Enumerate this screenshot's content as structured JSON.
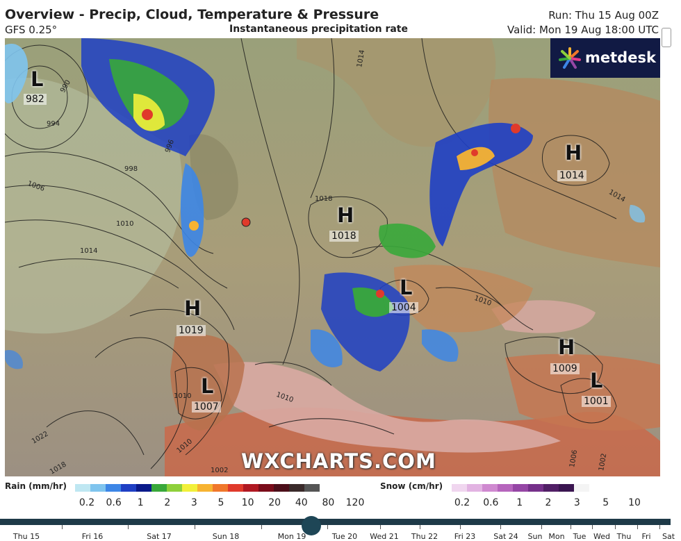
{
  "header": {
    "title": "Overview - Precip, Cloud, Temperature & Pressure",
    "model": "GFS 0.25°",
    "subtitle": "Instantaneous precipitation rate",
    "run": "Run: Thu 15 Aug 00Z",
    "valid": "Valid: Mon 19 Aug 18:00 UTC"
  },
  "brand": {
    "logo": "metdesk",
    "watermark": "WXCHARTS.COM"
  },
  "pressure_systems": [
    {
      "type": "L",
      "value": "982"
    },
    {
      "type": "H",
      "value": "1018"
    },
    {
      "type": "H",
      "value": "1014"
    },
    {
      "type": "L",
      "value": "1004"
    },
    {
      "type": "H",
      "value": "1019"
    },
    {
      "type": "L",
      "value": "1007"
    },
    {
      "type": "H",
      "value": "1009"
    },
    {
      "type": "L",
      "value": "1001"
    }
  ],
  "isobar_labels": [
    "990",
    "994",
    "998",
    "996",
    "1006",
    "1010",
    "1014",
    "1018",
    "1010",
    "1014",
    "1010",
    "1022",
    "1018",
    "1010",
    "1002",
    "1006",
    "1002",
    "1010",
    "1014"
  ],
  "legend": {
    "rain": {
      "title": "Rain (mm/hr)",
      "ticks": [
        "0.2",
        "0.6",
        "1",
        "2",
        "3",
        "5",
        "10",
        "20",
        "40",
        "80",
        "120"
      ],
      "colors": [
        "#bfe7f2",
        "#7fc4ee",
        "#3d86e6",
        "#1f3fc4",
        "#0a1a8a",
        "#39a83a",
        "#8ed03b",
        "#f2f03a",
        "#f7b331",
        "#f0772b",
        "#e03a2b",
        "#b01822",
        "#7a0c1a",
        "#4c0f1a",
        "#3a2a2a",
        "#555555"
      ]
    },
    "snow": {
      "title": "Snow (cm/hr)",
      "ticks": [
        "0.2",
        "0.6",
        "1",
        "2",
        "3",
        "5",
        "10"
      ],
      "colors": [
        "#f0d6ef",
        "#e2b3e2",
        "#cf89d0",
        "#b665bd",
        "#9546a5",
        "#75308a",
        "#511f66",
        "#3a1550",
        "#f4f4f4",
        "#ffffff"
      ]
    }
  },
  "timeline": {
    "days": [
      "Thu 15",
      "Fri 16",
      "Sat 17",
      "Sun 18",
      "Mon 19",
      "Tue 20",
      "Wed 21",
      "Thu 22",
      "Fri 23",
      "Sat 24",
      "Sun",
      "Mon",
      "Tue",
      "Wed",
      "Thu",
      "Fri",
      "Sat"
    ],
    "current_step_fraction": 0.45
  },
  "location_marker": {
    "color": "#e03a2b"
  }
}
